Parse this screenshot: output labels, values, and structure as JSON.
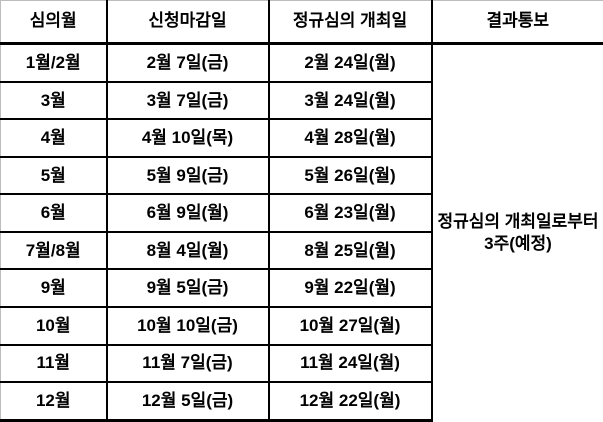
{
  "table": {
    "headers": [
      "심의월",
      "신청마감일",
      "정규심의 개최일",
      "결과통보"
    ],
    "rows": [
      {
        "month": "1월/2월",
        "deadline": "2월 7일(금)",
        "review_date": "2월 24일(월)"
      },
      {
        "month": "3월",
        "deadline": "3월 7일(금)",
        "review_date": "3월 24일(월)"
      },
      {
        "month": "4월",
        "deadline": "4월 10일(목)",
        "review_date": "4월 28일(월)"
      },
      {
        "month": "5월",
        "deadline": "5월 9일(금)",
        "review_date": "5월 26일(월)"
      },
      {
        "month": "6월",
        "deadline": "6월 9일(월)",
        "review_date": "6월 23일(월)"
      },
      {
        "month": "7월/8월",
        "deadline": "8월 4일(월)",
        "review_date": "8월 25일(월)"
      },
      {
        "month": "9월",
        "deadline": "9월 5일(금)",
        "review_date": "9월 22일(월)"
      },
      {
        "month": "10월",
        "deadline": "10월 10일(금)",
        "review_date": "10월 27일(월)"
      },
      {
        "month": "11월",
        "deadline": "11월 7일(금)",
        "review_date": "11월 24일(월)"
      },
      {
        "month": "12월",
        "deadline": "12월 5일(금)",
        "review_date": "12월 22일(월)"
      }
    ],
    "result_notification": {
      "line1": "정규심의 개최일로부터",
      "line2": "3주(예정)"
    }
  },
  "colors": {
    "border_black": "#000000",
    "gridline_gray": "#bdbdbd",
    "background": "#ffffff",
    "text": "#000000"
  }
}
